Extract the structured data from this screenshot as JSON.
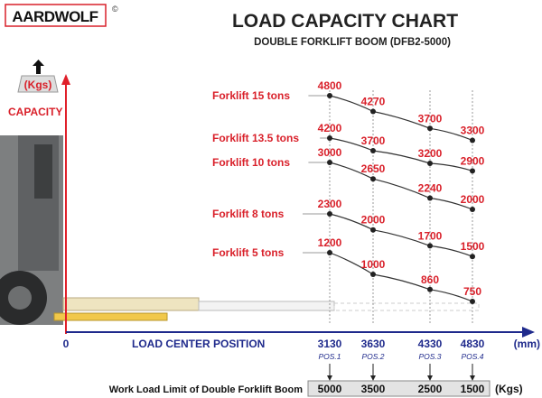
{
  "logo": {
    "text": "AARDWOLF",
    "mark": "©"
  },
  "chart_data": {
    "type": "line",
    "title": "LOAD CAPACITY CHART",
    "subtitle": "DOUBLE FORKLIFT BOOM (DFB2-5000)",
    "ylabel": "CAPACITY",
    "yunit": "(Kgs)",
    "xlabel": "LOAD CENTER POSITION",
    "xunit": "(mm)",
    "x_origin_label": "0",
    "x": [
      3130,
      3630,
      4330,
      4830
    ],
    "x_tick_labels": [
      "3130",
      "3630",
      "4330",
      "4830"
    ],
    "positions": [
      "POS.1",
      "POS.2",
      "POS.3",
      "POS.4"
    ],
    "series": [
      {
        "name": "Forklift 15 tons",
        "values": [
          4800,
          4270,
          3700,
          3300
        ]
      },
      {
        "name": "Forklift 13.5 tons",
        "values": [
          4200,
          3700,
          3200,
          2900
        ]
      },
      {
        "name": "Forklift 10 tons",
        "values": [
          3000,
          2650,
          2240,
          2000
        ]
      },
      {
        "name": "Forklift 8 tons",
        "values": [
          2300,
          2000,
          1700,
          1500
        ]
      },
      {
        "name": "Forklift 5 tons",
        "values": [
          1200,
          1000,
          860,
          750
        ]
      }
    ],
    "work_load_limit": {
      "label": "Work Load Limit of Double Forklift Boom",
      "values": [
        "5000",
        "3500",
        "2500",
        "1500"
      ],
      "unit": "(Kgs)"
    },
    "colors": {
      "series_label": "#d9202a",
      "axis_y": "#e0202a",
      "axis_x": "#1f2a8c",
      "dots": "#222222"
    }
  }
}
